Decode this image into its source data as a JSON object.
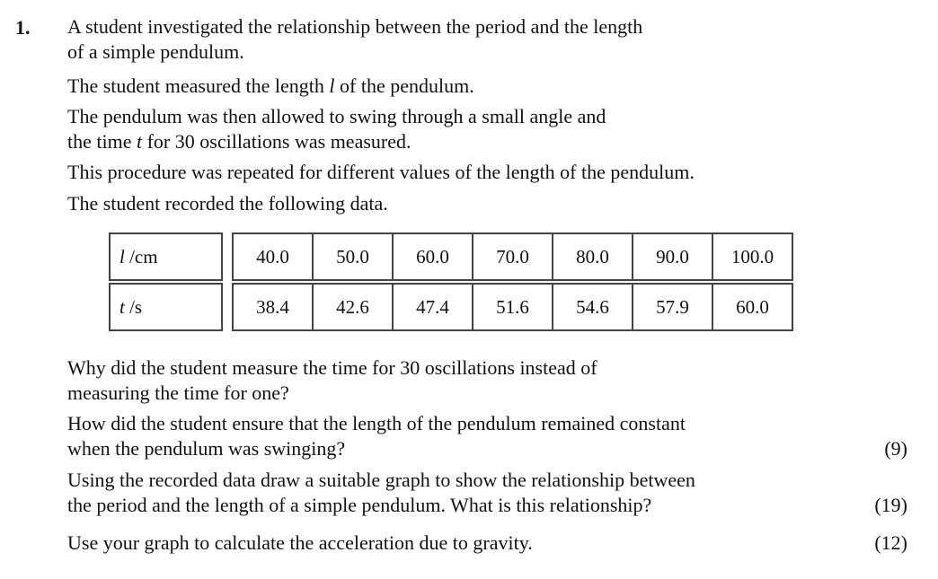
{
  "question": {
    "number": "1.",
    "intro": [
      "A student investigated the relationship between the period and the length",
      "of a simple pendulum."
    ],
    "measure_pre": "The student measured the length ",
    "measure_var": "l",
    "measure_post": " of the pendulum.",
    "swing_line1": "The pendulum was then allowed to swing through a small angle and",
    "swing_pre": "the time ",
    "swing_var": "t",
    "swing_post": " for 30 oscillations was measured.",
    "repeat": "This procedure was repeated for different values of the length of the pendulum.",
    "recorded": "The student recorded the following data."
  },
  "table": {
    "row_l": {
      "var": "l",
      "unit": " /cm",
      "values": [
        "40.0",
        "50.0",
        "60.0",
        "70.0",
        "80.0",
        "90.0",
        "100.0"
      ]
    },
    "row_t": {
      "var": "t",
      "unit": " /s",
      "values": [
        "38.4",
        "42.6",
        "47.4",
        "51.6",
        "54.6",
        "57.9",
        "60.0"
      ]
    }
  },
  "parts": {
    "p1": [
      "Why did the student measure the time for 30 oscillations instead of",
      "measuring the time for one?"
    ],
    "p2": [
      "How did the student ensure that the length of the pendulum remained constant",
      "when the pendulum was swinging?"
    ],
    "p3": [
      "Using the recorded data draw a suitable graph to show the relationship between",
      "the period and the length of a simple pendulum.  What is this relationship?"
    ],
    "p4": "Use your graph to calculate the acceleration due to gravity."
  },
  "marks": {
    "m1": "(9)",
    "m2": "(19)",
    "m3": "(12)"
  }
}
